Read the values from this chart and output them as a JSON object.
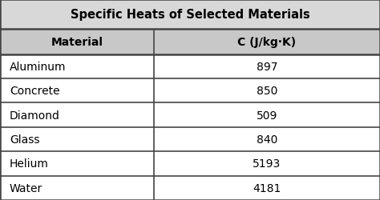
{
  "title": "Specific Heats of Selected Materials",
  "col_headers": [
    "Material",
    "C (J/kg·K)"
  ],
  "rows": [
    [
      "Aluminum",
      "897"
    ],
    [
      "Concrete",
      "850"
    ],
    [
      "Diamond",
      "509"
    ],
    [
      "Glass",
      "840"
    ],
    [
      "Helium",
      "5193"
    ],
    [
      "Water",
      "4181"
    ]
  ],
  "bg_color": "#f0f0f0",
  "title_bg": "#d8d8d8",
  "header_bg": "#c8c8c8",
  "data_bg": "#ffffff",
  "border_color": "#444444",
  "title_fontsize": 10.5,
  "header_fontsize": 10,
  "cell_fontsize": 10,
  "col_split": 0.405
}
